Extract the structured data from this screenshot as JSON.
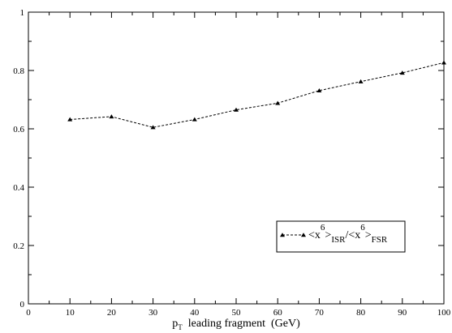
{
  "chart_data": {
    "type": "line",
    "title": "",
    "xlabel": {
      "main": "p",
      "sub": "T",
      "rest": "  leading fragment  (GeV)"
    },
    "ylabel": "",
    "xlim": [
      0,
      100
    ],
    "ylim": [
      0,
      1
    ],
    "xticks": [
      "0",
      "10",
      "20",
      "30",
      "40",
      "50",
      "60",
      "70",
      "80",
      "90",
      "100"
    ],
    "yticks": [
      "0",
      "0.2",
      "0.4",
      "0.6",
      "0.8",
      "1"
    ],
    "grid": false,
    "legend_position": "lower-right",
    "line_style": "dashed",
    "marker": "triangle",
    "color": "#000000",
    "series": [
      {
        "name": "<x6>ISR/<x6>FSR",
        "legend": {
          "n1": "<x",
          "sup1": "6",
          "n2": ">",
          "sub1": "ISR",
          "n3": "/<x",
          "sup2": "6",
          "n4": ">",
          "sub2": "FSR"
        },
        "x": [
          10,
          20,
          30,
          40,
          50,
          60,
          70,
          80,
          90,
          100
        ],
        "y": [
          0.632,
          0.642,
          0.605,
          0.632,
          0.665,
          0.688,
          0.731,
          0.762,
          0.792,
          0.827
        ]
      }
    ]
  }
}
